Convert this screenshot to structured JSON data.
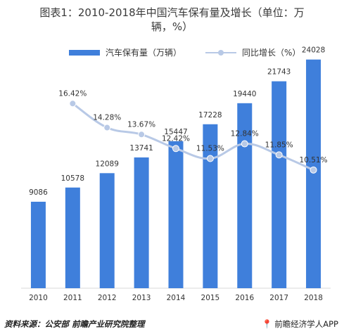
{
  "title": {
    "line1": "图表1：2010-2018年中国汽车保有量及增长（单位：万",
    "line2": "辆，%）"
  },
  "legend": {
    "bar_label": "汽车保有量（万辆）",
    "line_label": "同比增长（%）"
  },
  "footer": {
    "source": "资料来源：公安部  前瞻产业研究院整理",
    "brand": "前瞻经济学人APP",
    "brand_icon": "location-pin-icon"
  },
  "colors": {
    "bar": "#3f7fdb",
    "line": "#b8c9e6",
    "marker": "#b8c9e6"
  },
  "chart_data": {
    "type": "bar",
    "categories": [
      "2010",
      "2011",
      "2012",
      "2013",
      "2014",
      "2015",
      "2016",
      "2017",
      "2018"
    ],
    "series": [
      {
        "name": "汽车保有量（万辆）",
        "type": "bar",
        "axis": "left",
        "values": [
          9086,
          10578,
          12089,
          13741,
          15447,
          17228,
          19440,
          21743,
          24028
        ],
        "labels": [
          "9086",
          "10578",
          "12089",
          "13741",
          "15447",
          "17228",
          "19440",
          "21743",
          "24028"
        ]
      },
      {
        "name": "同比增长（%）",
        "type": "line",
        "axis": "right",
        "values": [
          null,
          16.42,
          14.28,
          13.67,
          12.42,
          11.53,
          12.84,
          11.85,
          10.51
        ],
        "labels": [
          "",
          "16.42%",
          "14.28%",
          "13.67%",
          "12.42%",
          "11.53%",
          "12.84%",
          "11.85%",
          "10.51%"
        ]
      }
    ],
    "title": "图表1：2010-2018年中国汽车保有量及增长（单位：万辆，%）",
    "xlabel": "",
    "ylabel": "",
    "ylim_left": [
      0,
      26000
    ],
    "ylim_right": [
      0,
      22
    ],
    "grid": false,
    "legend": "top-center"
  }
}
